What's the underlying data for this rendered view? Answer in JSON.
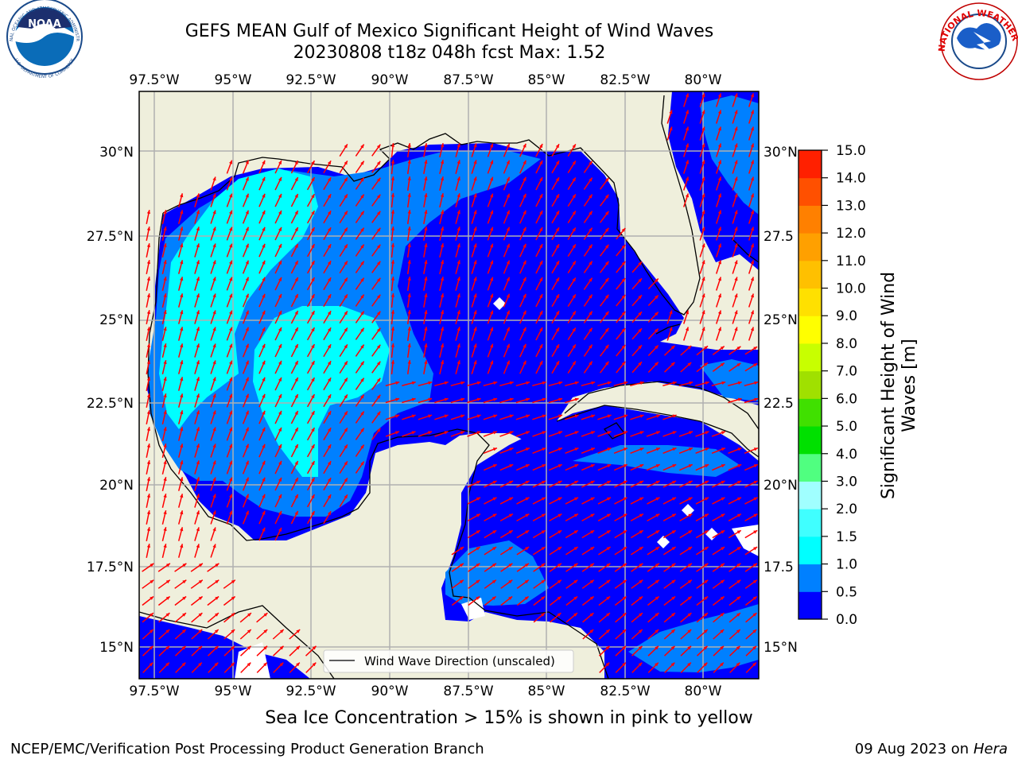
{
  "header": {
    "title_line1": "GEFS MEAN Gulf of Mexico Significant Height of Wind Waves",
    "title_line2": "20230808 t18z 048h fcst   Max: 1.52"
  },
  "logos": {
    "noaa": "NOAA",
    "noaa_ring": "NATIONAL OCEANIC AND ATMOSPHERIC ADMINISTRATION",
    "noaa_ring_bottom": "U.S. DEPARTMENT OF COMMERCE",
    "nws_ring": "NATIONAL WEATHER SERVICE"
  },
  "map": {
    "lon_ticks": [
      "97.5°W",
      "95°W",
      "92.5°W",
      "90°W",
      "87.5°W",
      "85°W",
      "82.5°W",
      "80°W"
    ],
    "lat_ticks_left": [
      "30°N",
      "27.5°N",
      "25°N",
      "22.5°N",
      "20°N",
      "17.5°N",
      "15°N"
    ],
    "lat_ticks_right": [
      "30°N",
      "27.5",
      "25°N",
      "22.5",
      "20°N",
      "17.5",
      "15°N"
    ],
    "legend_label": "Wind Wave Direction (unscaled)",
    "arrow_color": "#ff0000",
    "land_color": "#efefdc",
    "grid_color": "#b0b0b0"
  },
  "colorbar": {
    "label_line1": "Significant Height of Wind",
    "label_line2": "Waves [m]",
    "ticks": [
      "0.0",
      "0.5",
      "1.0",
      "1.5",
      "2.0",
      "3.0",
      "4.0",
      "5.0",
      "6.0",
      "7.0",
      "8.0",
      "9.0",
      "10.0",
      "11.0",
      "12.0",
      "13.0",
      "14.0",
      "15.0"
    ],
    "colors": [
      "#0000ff",
      "#0080ff",
      "#00ffff",
      "#40ffff",
      "#a0ffff",
      "#50ff80",
      "#00e000",
      "#40e000",
      "#a0e000",
      "#c8ff00",
      "#ffff00",
      "#ffe000",
      "#ffc000",
      "#ffa000",
      "#ff8000",
      "#ff5000",
      "#ff2000"
    ]
  },
  "footer": {
    "note": "Sea Ice Concentration > 15% is shown in pink to yellow",
    "credit": "NCEP/EMC/Verification Post Processing Product Generation Branch",
    "date": "09 Aug 2023 on",
    "host": "Hera"
  }
}
